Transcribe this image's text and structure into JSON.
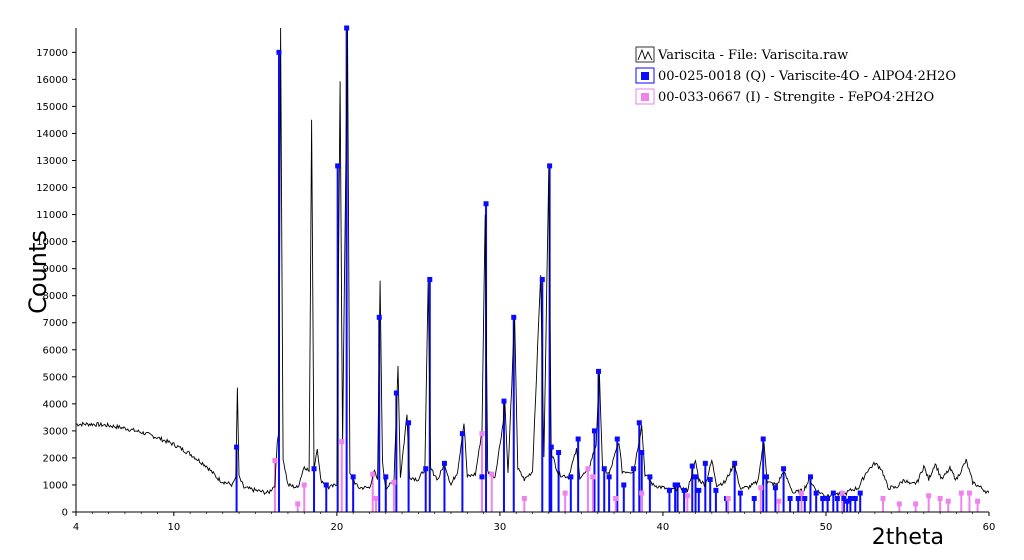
{
  "chart_data": {
    "type": "line",
    "xlabel": "2theta",
    "ylabel": "Counts",
    "xlim": [
      4,
      60
    ],
    "ylim": [
      0,
      17900
    ],
    "x_ticks": [
      4,
      10,
      20,
      30,
      40,
      50,
      60
    ],
    "y_ticks": [
      0,
      1000,
      2000,
      3000,
      4000,
      5000,
      6000,
      7000,
      8000,
      9000,
      10000,
      11000,
      12000,
      13000,
      14000,
      15000,
      16000,
      17000
    ],
    "grid": false,
    "legend_position": "top-right",
    "series": [
      {
        "name": "Variscita - File: Variscita.raw",
        "kind": "pattern",
        "color": "#000000",
        "points": [
          [
            4.0,
            3250
          ],
          [
            5.0,
            3250
          ],
          [
            6.0,
            3200
          ],
          [
            7.0,
            3100
          ],
          [
            8.0,
            2950
          ],
          [
            9.0,
            2750
          ],
          [
            10.0,
            2500
          ],
          [
            11.0,
            2150
          ],
          [
            12.0,
            1700
          ],
          [
            12.6,
            1300
          ],
          [
            12.9,
            1150
          ],
          [
            13.6,
            1000
          ],
          [
            13.8,
            1300
          ],
          [
            13.9,
            4600
          ],
          [
            14.0,
            1300
          ],
          [
            14.3,
            900
          ],
          [
            15.0,
            800
          ],
          [
            15.8,
            700
          ],
          [
            16.2,
            1000
          ],
          [
            16.35,
            2600
          ],
          [
            16.45,
            3000
          ],
          [
            16.55,
            17900
          ],
          [
            16.7,
            2000
          ],
          [
            17.0,
            1000
          ],
          [
            17.6,
            900
          ],
          [
            18.0,
            1700
          ],
          [
            18.3,
            1500
          ],
          [
            18.45,
            14500
          ],
          [
            18.6,
            1600
          ],
          [
            18.8,
            2400
          ],
          [
            19.0,
            1200
          ],
          [
            19.5,
            900
          ],
          [
            20.0,
            1000
          ],
          [
            20.1,
            9000
          ],
          [
            20.2,
            16000
          ],
          [
            20.35,
            2500
          ],
          [
            20.65,
            17900
          ],
          [
            20.8,
            1400
          ],
          [
            21.3,
            900
          ],
          [
            22.0,
            900
          ],
          [
            22.3,
            1500
          ],
          [
            22.5,
            1200
          ],
          [
            22.65,
            8500
          ],
          [
            22.8,
            1800
          ],
          [
            23.0,
            900
          ],
          [
            23.5,
            1100
          ],
          [
            23.75,
            5400
          ],
          [
            23.9,
            1300
          ],
          [
            24.3,
            3600
          ],
          [
            24.45,
            1300
          ],
          [
            25.0,
            1200
          ],
          [
            25.4,
            1600
          ],
          [
            25.6,
            8600
          ],
          [
            25.75,
            1600
          ],
          [
            26.2,
            1200
          ],
          [
            26.6,
            1800
          ],
          [
            27.0,
            1000
          ],
          [
            27.4,
            1500
          ],
          [
            27.8,
            3300
          ],
          [
            28.0,
            1300
          ],
          [
            28.5,
            1400
          ],
          [
            28.9,
            3000
          ],
          [
            29.1,
            11000
          ],
          [
            29.25,
            1500
          ],
          [
            29.7,
            1300
          ],
          [
            30.2,
            3300
          ],
          [
            30.3,
            4100
          ],
          [
            30.5,
            1400
          ],
          [
            30.9,
            7200
          ],
          [
            31.1,
            1600
          ],
          [
            31.5,
            1200
          ],
          [
            32.0,
            1500
          ],
          [
            32.5,
            8800
          ],
          [
            32.7,
            2000
          ],
          [
            33.0,
            12700
          ],
          [
            33.15,
            2200
          ],
          [
            33.6,
            1400
          ],
          [
            34.2,
            1300
          ],
          [
            34.7,
            2300
          ],
          [
            34.9,
            1300
          ],
          [
            35.4,
            1500
          ],
          [
            35.9,
            2500
          ],
          [
            36.1,
            5200
          ],
          [
            36.3,
            1600
          ],
          [
            36.7,
            1400
          ],
          [
            37.3,
            2600
          ],
          [
            37.5,
            1500
          ],
          [
            38.2,
            1500
          ],
          [
            38.7,
            3200
          ],
          [
            38.9,
            1400
          ],
          [
            39.4,
            1000
          ],
          [
            40.0,
            900
          ],
          [
            40.5,
            800
          ],
          [
            41.0,
            900
          ],
          [
            41.5,
            800
          ],
          [
            42.0,
            1900
          ],
          [
            42.2,
            1200
          ],
          [
            42.6,
            1000
          ],
          [
            43.0,
            1900
          ],
          [
            43.3,
            1000
          ],
          [
            43.8,
            1100
          ],
          [
            44.4,
            1800
          ],
          [
            44.7,
            900
          ],
          [
            45.2,
            900
          ],
          [
            45.8,
            1100
          ],
          [
            46.2,
            2600
          ],
          [
            46.4,
            1100
          ],
          [
            47.0,
            1000
          ],
          [
            47.4,
            1500
          ],
          [
            48.0,
            700
          ],
          [
            48.6,
            800
          ],
          [
            49.0,
            1200
          ],
          [
            49.4,
            800
          ],
          [
            50.0,
            600
          ],
          [
            50.5,
            700
          ],
          [
            51.0,
            600
          ],
          [
            51.5,
            800
          ],
          [
            52.0,
            900
          ],
          [
            52.5,
            1500
          ],
          [
            53.0,
            1800
          ],
          [
            53.4,
            1600
          ],
          [
            53.8,
            900
          ],
          [
            54.3,
            900
          ],
          [
            54.8,
            1200
          ],
          [
            55.2,
            1000
          ],
          [
            55.6,
            1100
          ],
          [
            56.0,
            1700
          ],
          [
            56.3,
            1200
          ],
          [
            56.7,
            1800
          ],
          [
            57.1,
            1200
          ],
          [
            57.6,
            1600
          ],
          [
            58.0,
            1200
          ],
          [
            58.6,
            1900
          ],
          [
            59.0,
            1100
          ],
          [
            59.5,
            900
          ],
          [
            60.0,
            700
          ]
        ]
      },
      {
        "name": "00-025-0018 (Q) - Variscite-4O - AlPO4·2H2O",
        "kind": "sticks",
        "color": "#0a0aff",
        "x": [
          13.85,
          16.45,
          18.6,
          19.35,
          20.05,
          20.6,
          21.0,
          22.6,
          23.0,
          23.65,
          24.4,
          25.45,
          25.7,
          26.6,
          27.7,
          28.9,
          29.15,
          30.25,
          30.85,
          32.6,
          33.05,
          33.15,
          33.6,
          34.35,
          34.8,
          35.8,
          36.05,
          36.4,
          36.7,
          37.2,
          37.6,
          38.2,
          38.55,
          38.7,
          39.2,
          40.4,
          40.75,
          40.9,
          41.3,
          41.8,
          42.0,
          42.2,
          42.6,
          42.9,
          43.25,
          43.9,
          44.4,
          44.75,
          45.6,
          46.15,
          46.35,
          46.9,
          47.4,
          47.8,
          48.3,
          48.7,
          49.05,
          49.4,
          49.8,
          50.1,
          50.45,
          50.7,
          51.1,
          51.3,
          51.5,
          51.8,
          52.1
        ],
        "y": [
          2400,
          17000,
          1600,
          1000,
          12800,
          17900,
          1300,
          7200,
          1300,
          4400,
          3300,
          1600,
          8600,
          1800,
          2900,
          1300,
          11400,
          4100,
          7200,
          8600,
          12800,
          2400,
          2200,
          1300,
          2700,
          3000,
          5200,
          1600,
          1300,
          2700,
          1000,
          1600,
          3300,
          2200,
          1300,
          800,
          1000,
          1000,
          800,
          1700,
          1300,
          800,
          1800,
          1200,
          800,
          500,
          1800,
          700,
          500,
          2700,
          1300,
          900,
          1600,
          500,
          500,
          500,
          1300,
          700,
          500,
          500,
          700,
          500,
          500,
          400,
          500,
          500,
          700
        ]
      },
      {
        "name": "00-033-0667 (I) - Strengite - FePO4·2H2O",
        "kind": "sticks",
        "color": "#ee82ee",
        "x": [
          16.2,
          17.6,
          18.0,
          20.3,
          22.2,
          22.4,
          23.5,
          28.9,
          29.5,
          31.5,
          34.0,
          35.4,
          35.7,
          37.1,
          38.7,
          41.5,
          44.0,
          46.0,
          47.1,
          48.5,
          51.0,
          53.5,
          54.5,
          55.5,
          56.3,
          57.0,
          57.5,
          58.3,
          58.8,
          59.3
        ],
        "y": [
          1900,
          300,
          1000,
          2600,
          1400,
          500,
          1100,
          2900,
          1400,
          500,
          700,
          1600,
          1300,
          500,
          700,
          600,
          500,
          900,
          400,
          700,
          700,
          500,
          300,
          300,
          600,
          500,
          400,
          700,
          700,
          400
        ]
      }
    ]
  }
}
